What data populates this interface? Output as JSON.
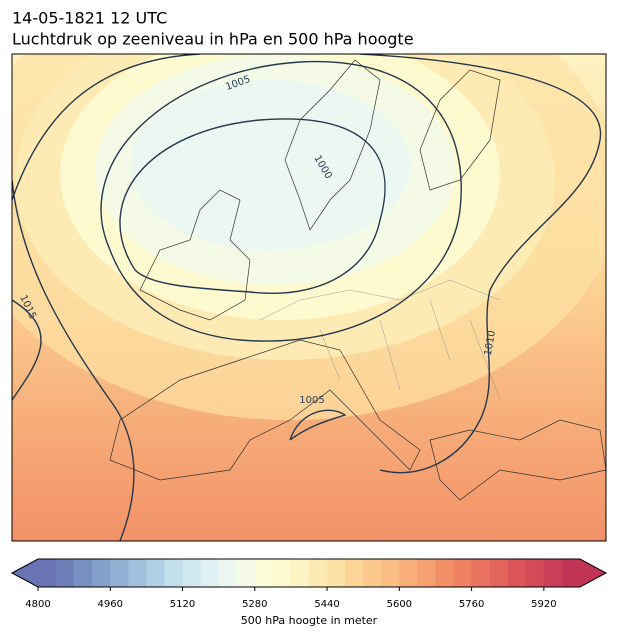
{
  "header": {
    "title": "14-05-1821 12 UTC",
    "subtitle": "Luchtdruk op zeeniveau in hPa en 500 hPa hoogte"
  },
  "map": {
    "contour_labels": [
      "1005",
      "1000",
      "1015",
      "1010",
      "1005"
    ]
  },
  "colorbar": {
    "label": "500 hPa hoogte in meter",
    "lim": [
      4800,
      6000
    ],
    "ticks": [
      4800,
      4960,
      5120,
      5280,
      5440,
      5600,
      5760,
      5920
    ],
    "colors": [
      "#6a73b4",
      "#6e80ba",
      "#7890c2",
      "#82a0ca",
      "#90b1d3",
      "#9fc1dc",
      "#afd1e5",
      "#c0dfeb",
      "#d0e8f0",
      "#e0f1f4",
      "#ecf7f1",
      "#f4fae6",
      "#fbfcd8",
      "#fefad0",
      "#fef3c2",
      "#feebb3",
      "#fde1a4",
      "#fcd597",
      "#fbc98c",
      "#f9bc82",
      "#f7ae79",
      "#f5a070",
      "#f29168",
      "#ee8262",
      "#e9735e",
      "#e3645b",
      "#dc5659",
      "#d44a58",
      "#cb3e57",
      "#c23456"
    ]
  }
}
